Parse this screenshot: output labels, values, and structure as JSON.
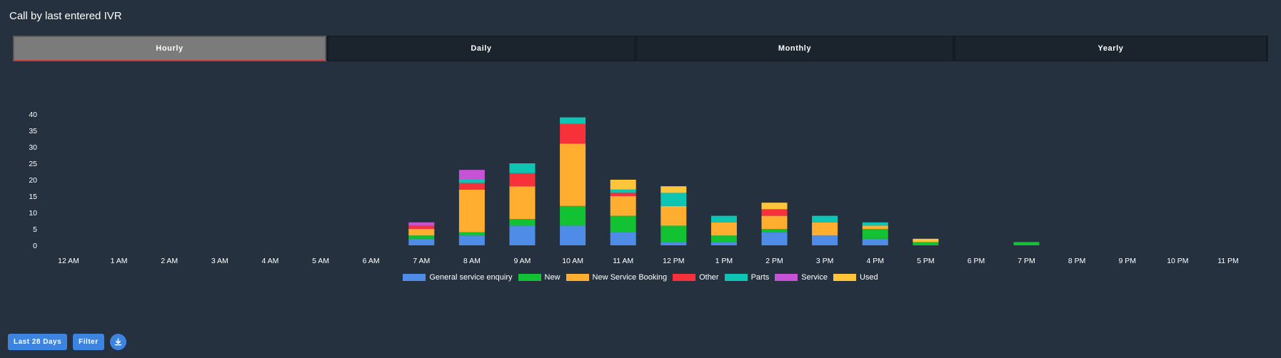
{
  "panel": {
    "title": "Call by last entered IVR"
  },
  "tabs": [
    {
      "label": "Hourly",
      "active": true
    },
    {
      "label": "Daily",
      "active": false
    },
    {
      "label": "Monthly",
      "active": false
    },
    {
      "label": "Yearly",
      "active": false
    }
  ],
  "footer": {
    "range_label": "Last 28 Days",
    "filter_label": "Filter",
    "download_icon": "download-icon"
  },
  "chart_data": {
    "type": "bar",
    "stacked": true,
    "title": "",
    "xlabel": "",
    "ylabel": "",
    "ylim": [
      0,
      40
    ],
    "yticks": [
      0,
      5,
      10,
      15,
      20,
      25,
      30,
      35,
      40
    ],
    "grid": false,
    "legend": "bottom-center",
    "categories": [
      "12 AM",
      "1 AM",
      "2 AM",
      "3 AM",
      "4 AM",
      "5 AM",
      "6 AM",
      "7 AM",
      "8 AM",
      "9 AM",
      "10 AM",
      "11 AM",
      "12 PM",
      "1 PM",
      "2 PM",
      "3 PM",
      "4 PM",
      "5 PM",
      "6 PM",
      "7 PM",
      "8 PM",
      "9 PM",
      "10 PM",
      "11 PM"
    ],
    "series": [
      {
        "name": "General service enquiry",
        "color": "#4f8ce8",
        "values": [
          0,
          0,
          0,
          0,
          0,
          0,
          0,
          2,
          3,
          6,
          6,
          4,
          1,
          1,
          4,
          3,
          2,
          0,
          0,
          0,
          0,
          0,
          0,
          0
        ]
      },
      {
        "name": "New",
        "color": "#12c233",
        "values": [
          0,
          0,
          0,
          0,
          0,
          0,
          0,
          1,
          1,
          2,
          6,
          5,
          5,
          2,
          1,
          0,
          3,
          1,
          0,
          1,
          0,
          0,
          0,
          0
        ]
      },
      {
        "name": "New Service Booking",
        "color": "#ffae2f",
        "values": [
          0,
          0,
          0,
          0,
          0,
          0,
          0,
          2,
          13,
          10,
          19,
          6,
          6,
          4,
          4,
          4,
          1,
          0,
          0,
          0,
          0,
          0,
          0,
          0
        ]
      },
      {
        "name": "Other",
        "color": "#f7313a",
        "values": [
          0,
          0,
          0,
          0,
          0,
          0,
          0,
          1,
          2,
          4,
          6,
          1,
          0,
          0,
          2,
          0,
          0,
          0,
          0,
          0,
          0,
          0,
          0,
          0
        ]
      },
      {
        "name": "Parts",
        "color": "#0ec4b2",
        "values": [
          0,
          0,
          0,
          0,
          0,
          0,
          0,
          0,
          1,
          3,
          2,
          1,
          4,
          2,
          0,
          2,
          1,
          0,
          0,
          0,
          0,
          0,
          0,
          0
        ]
      },
      {
        "name": "Service",
        "color": "#c653d6",
        "values": [
          0,
          0,
          0,
          0,
          0,
          0,
          0,
          1,
          3,
          0,
          0,
          0,
          0,
          0,
          0,
          0,
          0,
          0,
          0,
          0,
          0,
          0,
          0,
          0
        ]
      },
      {
        "name": "Used",
        "color": "#ffc53a",
        "values": [
          0,
          0,
          0,
          0,
          0,
          0,
          0,
          0,
          0,
          0,
          0,
          3,
          2,
          0,
          2,
          0,
          0,
          1,
          0,
          0,
          0,
          0,
          0,
          0
        ]
      }
    ]
  }
}
